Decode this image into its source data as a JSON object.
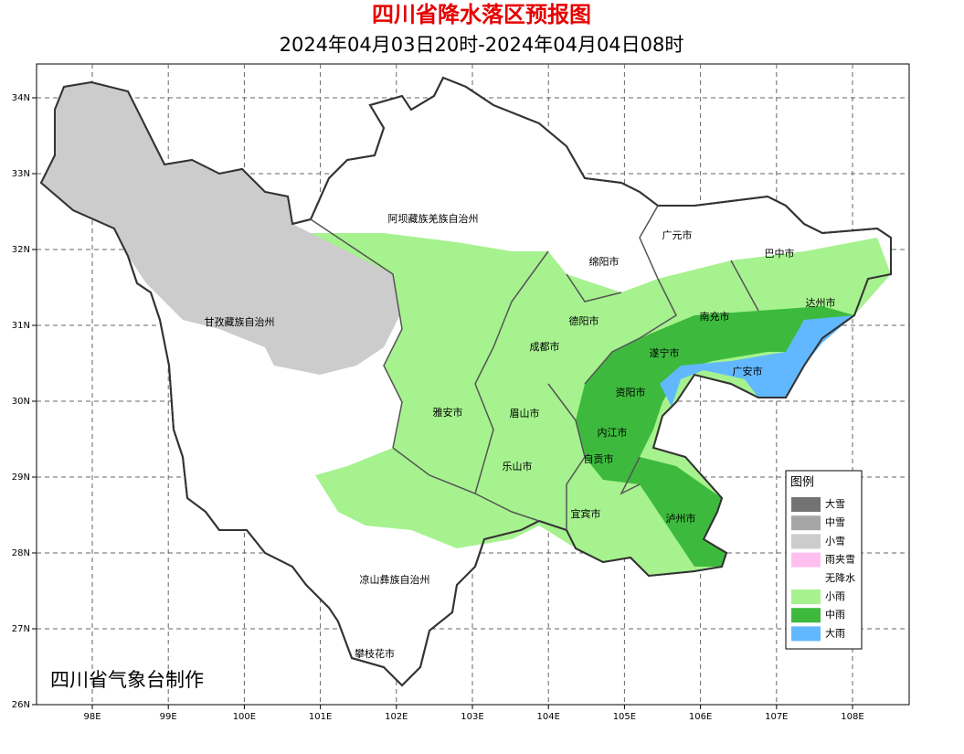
{
  "header": {
    "title": "四川省降水落区预报图",
    "subtitle": "2024年04月03日20时-2024年04月04日08时"
  },
  "map": {
    "lon_ticks": [
      "98E",
      "99E",
      "100E",
      "101E",
      "102E",
      "103E",
      "104E",
      "105E",
      "106E",
      "107E",
      "108E"
    ],
    "lat_ticks": [
      "34N",
      "33N",
      "32N",
      "31N",
      "30N",
      "29N",
      "28N",
      "27N",
      "26N"
    ],
    "places": [
      {
        "label": "阿坝藏族羌族自治州"
      },
      {
        "label": "甘孜藏族自治州"
      },
      {
        "label": "凉山彝族自治州"
      },
      {
        "label": "攀枝花市"
      },
      {
        "label": "广元市"
      },
      {
        "label": "巴中市"
      },
      {
        "label": "绵阳市"
      },
      {
        "label": "达州市"
      },
      {
        "label": "南充市"
      },
      {
        "label": "德阳市"
      },
      {
        "label": "成都市"
      },
      {
        "label": "遂宁市"
      },
      {
        "label": "广安市"
      },
      {
        "label": "资阳市"
      },
      {
        "label": "雅安市"
      },
      {
        "label": "眉山市"
      },
      {
        "label": "内江市"
      },
      {
        "label": "自贡市"
      },
      {
        "label": "乐山市"
      },
      {
        "label": "宜宾市"
      },
      {
        "label": "泸州市"
      }
    ]
  },
  "legend": {
    "title": "图例",
    "items": [
      {
        "label": "大雪",
        "color": "#737373"
      },
      {
        "label": "中雪",
        "color": "#a6a6a6"
      },
      {
        "label": "小雪",
        "color": "#cccccc"
      },
      {
        "label": "雨夹雪",
        "color": "#ffc0f0"
      },
      {
        "label": "无降水",
        "color": "#ffffff"
      },
      {
        "label": "小雨",
        "color": "#a6f28f"
      },
      {
        "label": "中雨",
        "color": "#3dba3d"
      },
      {
        "label": "大雨",
        "color": "#61b8ff"
      }
    ]
  },
  "credit": "四川省气象台制作"
}
